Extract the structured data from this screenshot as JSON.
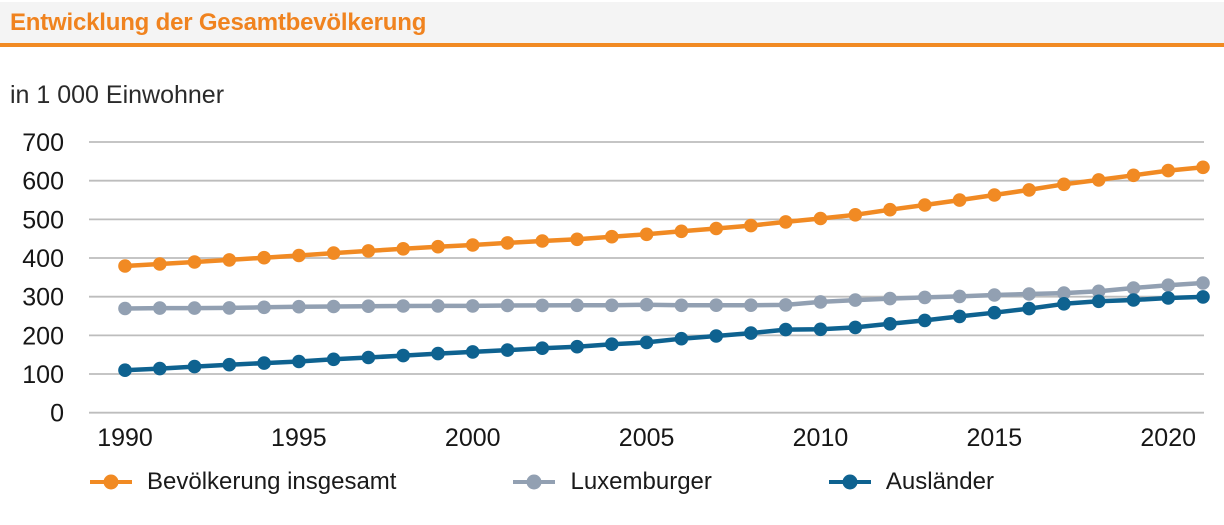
{
  "header": {
    "title": "Entwicklung der Gesamtbevölkerung"
  },
  "colors": {
    "accent_orange": "#F18A23",
    "series_total": "#F18A23",
    "series_luxemburger": "#92A0B2",
    "series_auslaender": "#0E6290",
    "gridline": "#BDBDBD",
    "axis_text": "#161616",
    "header_background": "#F4F4F4"
  },
  "chart_data": {
    "type": "line",
    "title": "Entwicklung der Gesamtbevölkerung",
    "unit_label": "in 1 000 Einwohner",
    "xlabel": "",
    "ylabel": "in 1 000 Einwohner",
    "ylim": [
      0,
      700
    ],
    "yticks": [
      0,
      100,
      200,
      300,
      400,
      500,
      600,
      700
    ],
    "xticks": [
      1990,
      1995,
      2000,
      2005,
      2010,
      2015,
      2020
    ],
    "grid": "horizontal",
    "legend_position": "bottom",
    "marker": "circle",
    "x": [
      1990,
      1991,
      1992,
      1993,
      1994,
      1995,
      1996,
      1997,
      1998,
      1999,
      2000,
      2001,
      2002,
      2003,
      2004,
      2005,
      2006,
      2007,
      2008,
      2009,
      2010,
      2011,
      2012,
      2013,
      2014,
      2015,
      2016,
      2017,
      2018,
      2019,
      2020,
      2021
    ],
    "series": [
      {
        "name": "Bevölkerung insgesamt",
        "color": "#F18A23",
        "values": [
          379.3,
          384.4,
          389.8,
          395.2,
          400.9,
          406.6,
          412.8,
          418.3,
          423.7,
          429.2,
          433.6,
          439.0,
          444.1,
          448.3,
          455.0,
          461.2,
          469.1,
          476.2,
          483.8,
          493.5,
          502.1,
          511.8,
          524.9,
          537.0,
          549.7,
          563.0,
          576.2,
          590.7,
          602.0,
          613.9,
          626.1,
          634.7
        ]
      },
      {
        "name": "Luxemburger",
        "color": "#92A0B2",
        "values": [
          269.5,
          270.4,
          270.6,
          271.1,
          272.6,
          274.1,
          274.7,
          275.5,
          276.0,
          276.3,
          276.3,
          277.2,
          277.4,
          277.6,
          277.8,
          279.4,
          277.8,
          277.9,
          277.9,
          278.7,
          286.4,
          291.3,
          295.0,
          298.2,
          300.8,
          304.3,
          307.0,
          309.2,
          313.9,
          322.4,
          329.6,
          335.3
        ]
      },
      {
        "name": "Ausländer",
        "color": "#0E6290",
        "values": [
          109.8,
          114.0,
          119.2,
          124.1,
          128.3,
          132.5,
          138.1,
          142.8,
          147.7,
          152.9,
          157.3,
          161.8,
          166.7,
          170.7,
          177.2,
          181.8,
          191.3,
          198.3,
          205.9,
          214.8,
          215.7,
          220.5,
          229.9,
          238.8,
          248.9,
          258.7,
          269.2,
          281.5,
          288.1,
          291.5,
          296.5,
          299.4
        ]
      }
    ]
  },
  "legend": {
    "items": [
      "Bevölkerung insgesamt",
      "Luxemburger",
      "Ausländer"
    ]
  }
}
